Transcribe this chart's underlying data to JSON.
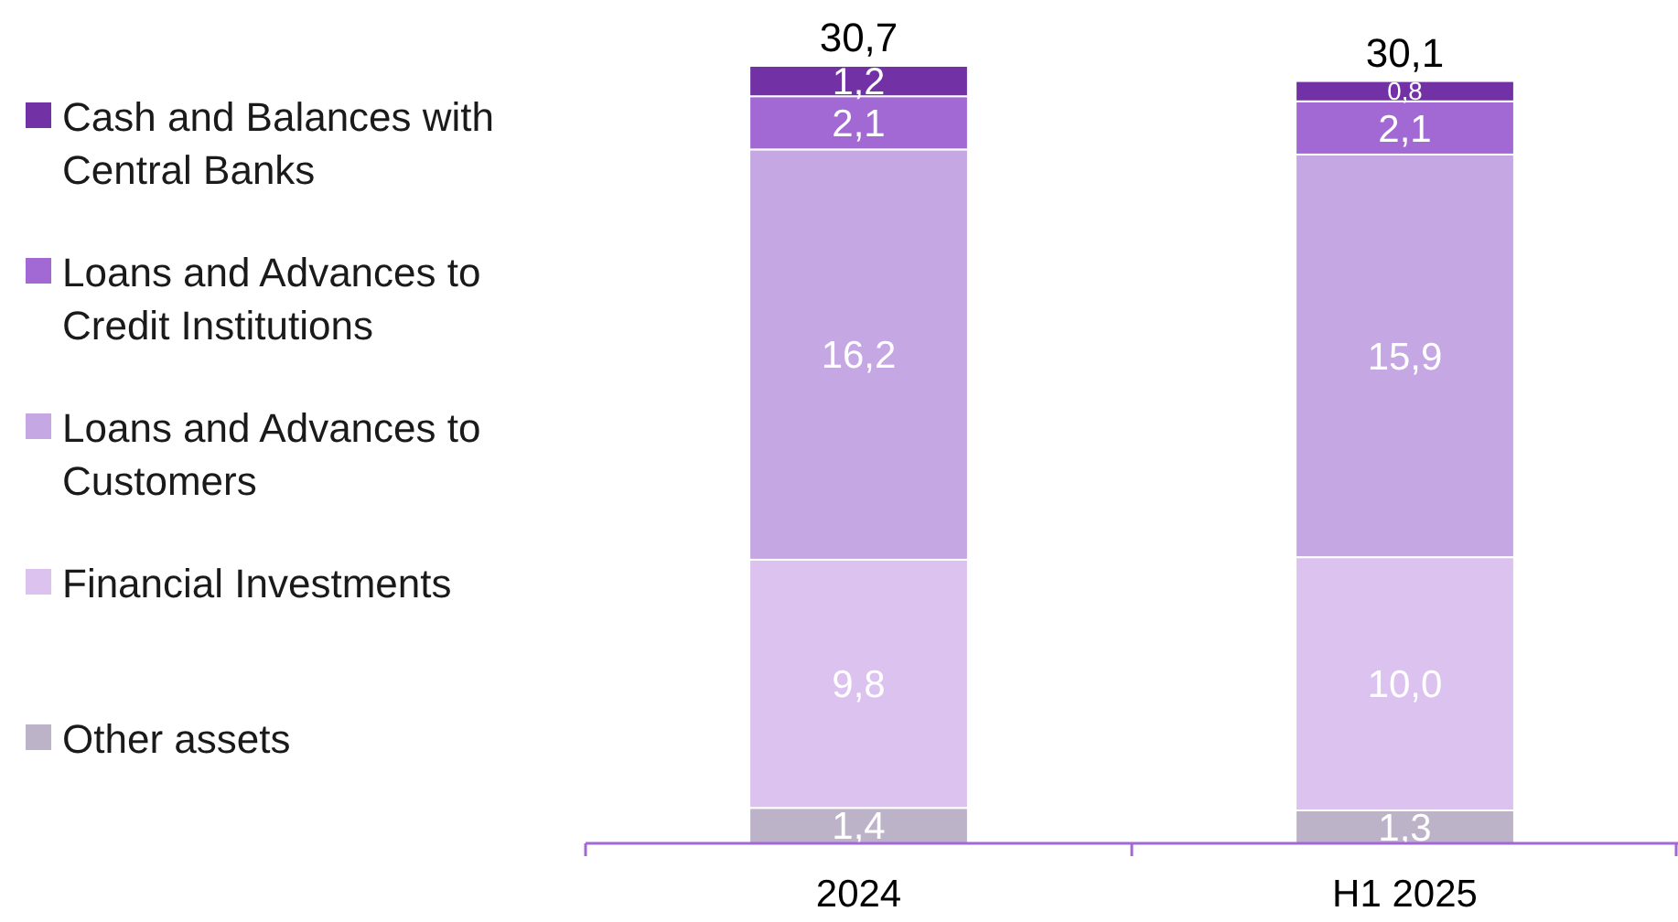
{
  "chart_data": {
    "type": "bar",
    "stacked": true,
    "categories": [
      "2024",
      "H1 2025"
    ],
    "legend": "left",
    "totals": [
      "30,7",
      "30,1"
    ],
    "series": [
      {
        "name": "Other assets",
        "color": "#bdb3c8",
        "values": [
          1.4,
          1.3
        ],
        "value_labels": [
          "1,4",
          "1,3"
        ]
      },
      {
        "name": "Financial Investments",
        "color": "#dcc3ef",
        "values": [
          9.8,
          10.0
        ],
        "value_labels": [
          "9,8",
          "10,0"
        ]
      },
      {
        "name": "Loans and Advances to Customers",
        "color": "#c5a7e3",
        "values": [
          16.2,
          15.9
        ],
        "value_labels": [
          "16,2",
          "15,9"
        ]
      },
      {
        "name": "Loans and Advances to Credit Institutions",
        "color": "#a268d4",
        "values": [
          2.1,
          2.1
        ],
        "value_labels": [
          "2,1",
          "2,1"
        ]
      },
      {
        "name": "Cash and Balances with Central Banks",
        "color": "#7232a6",
        "values": [
          1.2,
          0.8
        ],
        "value_labels": [
          "1,2",
          "0,8"
        ]
      }
    ]
  }
}
